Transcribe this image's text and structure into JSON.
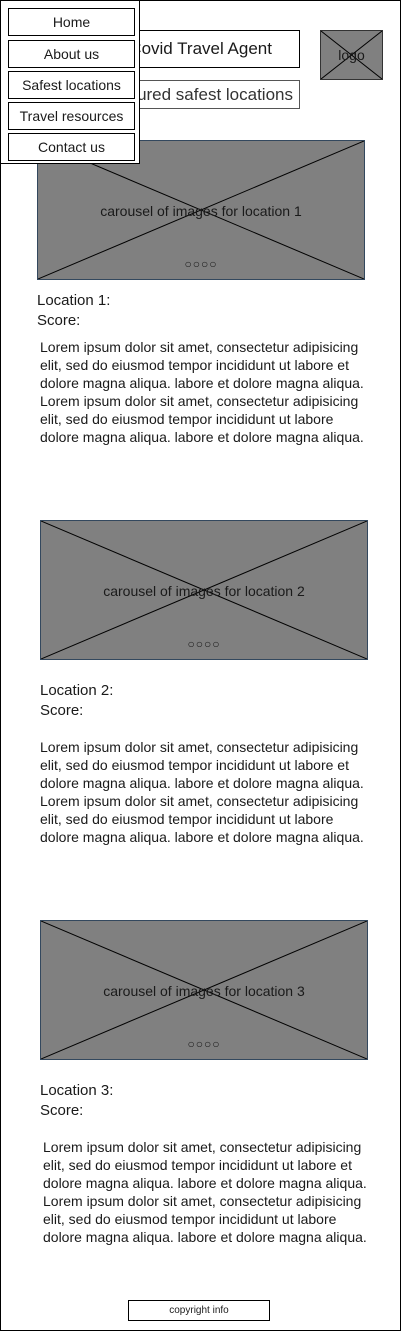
{
  "nav": {
    "items": [
      {
        "label": "Home"
      },
      {
        "label": "About us"
      },
      {
        "label": "Safest locations"
      },
      {
        "label": "Travel resources"
      },
      {
        "label": "Contact us"
      }
    ]
  },
  "header": {
    "title": "Covid Travel Agent",
    "featured": "Featured safest locations",
    "logo_label": "logo"
  },
  "locations": [
    {
      "carousel_label": "carousel of images for location 1",
      "dots": "○○○○",
      "name": "Location 1:",
      "score": "Score:",
      "paragraphs": [
        "Lorem ipsum dolor sit amet, consectetur adipisicing elit, sed do eiusmod tempor incididunt ut labore et dolore magna aliqua. labore et dolore magna aliqua.",
        "Lorem ipsum dolor sit amet, consectetur adipisicing elit, sed do eiusmod tempor incididunt ut labore dolore magna aliqua.  labore et dolore magna aliqua."
      ]
    },
    {
      "carousel_label": "carousel of images for location 2",
      "dots": "○○○○",
      "name": "Location 2:",
      "score": "Score:",
      "paragraphs": [
        "Lorem ipsum dolor sit amet, consectetur adipisicing elit, sed do eiusmod tempor incididunt ut labore et dolore magna aliqua. labore et dolore magna aliqua.",
        "Lorem ipsum dolor sit amet, consectetur adipisicing elit, sed do eiusmod tempor incididunt ut labore dolore magna aliqua.  labore et dolore magna aliqua."
      ]
    },
    {
      "carousel_label": "carousel of images for location 3",
      "dots": "○○○○",
      "name": "Location 3:",
      "score": "Score:",
      "paragraphs": [
        "Lorem ipsum dolor sit amet, consectetur adipisicing elit, sed do eiusmod tempor incididunt ut labore et dolore magna aliqua. labore et dolore magna aliqua.",
        "Lorem ipsum dolor sit amet, consectetur adipisicing elit, sed do eiusmod tempor incididunt ut labore dolore magna aliqua.  labore et dolore magna aliqua."
      ]
    }
  ],
  "footer": {
    "copyright": "copyright info"
  },
  "colors": {
    "placeholder_fill": "#808080",
    "border": "#000000"
  }
}
